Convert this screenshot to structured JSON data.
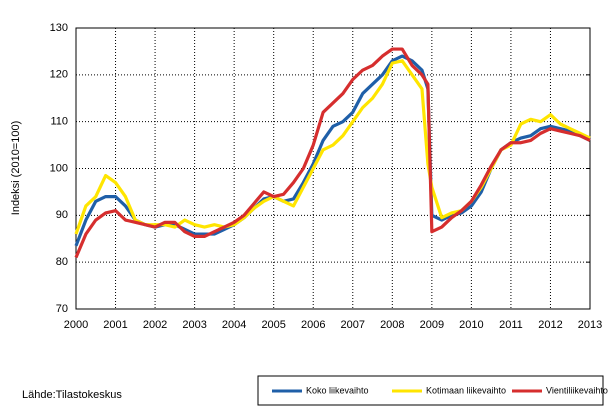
{
  "chart_data": {
    "type": "line",
    "y_label": "Indeksi (2010=100)",
    "source": "Lähde:Tilastokeskus",
    "x": [
      2000,
      2000.25,
      2000.5,
      2000.75,
      2001,
      2001.25,
      2001.5,
      2001.75,
      2002,
      2002.25,
      2002.5,
      2002.75,
      2003,
      2003.25,
      2003.5,
      2003.75,
      2004,
      2004.25,
      2004.5,
      2004.75,
      2005,
      2005.25,
      2005.5,
      2005.75,
      2006,
      2006.25,
      2006.5,
      2006.75,
      2007,
      2007.25,
      2007.5,
      2007.75,
      2008,
      2008.25,
      2008.5,
      2008.75,
      2008.9,
      2009,
      2009.25,
      2009.5,
      2009.75,
      2010,
      2010.25,
      2010.5,
      2010.75,
      2011,
      2011.25,
      2011.5,
      2011.75,
      2012,
      2012.25,
      2012.5,
      2012.75,
      2013
    ],
    "series": [
      {
        "name": "Koko liikevaihto",
        "color": "#1f5fa8",
        "values": [
          83.5,
          89,
          93,
          94,
          94,
          92,
          89,
          88,
          87.5,
          88,
          88,
          87,
          86,
          86,
          86,
          87,
          88,
          89.5,
          91.5,
          93.5,
          94,
          93,
          93.5,
          97,
          101,
          106,
          109,
          110,
          112,
          116,
          118,
          120,
          123,
          124,
          123,
          121,
          117,
          90,
          89,
          90,
          90.5,
          92,
          95,
          100,
          104,
          105.5,
          106.5,
          107,
          108.5,
          109,
          108.5,
          108,
          107,
          106
        ]
      },
      {
        "name": "Kotimaan liikevaihto",
        "color": "#ffe500",
        "values": [
          86,
          92,
          94,
          98.5,
          97,
          94,
          89,
          88,
          88,
          88,
          87.5,
          89,
          88,
          87.5,
          88,
          87.5,
          88,
          89.5,
          91.5,
          93,
          94,
          93,
          92,
          96,
          100,
          104,
          105,
          107,
          110,
          113,
          115,
          118,
          122.5,
          123,
          120,
          117,
          101,
          96,
          89.5,
          90.5,
          91,
          93,
          96,
          100,
          104,
          105,
          109.5,
          110.5,
          110,
          111.5,
          109.5,
          108.5,
          107.5,
          106.5
        ]
      },
      {
        "name": "Vientiliikevaihto",
        "color": "#d62e2e",
        "values": [
          81,
          86,
          89,
          90.5,
          91,
          89,
          88.5,
          88,
          87.5,
          88.5,
          88.5,
          86.5,
          85.5,
          85.5,
          86.5,
          87.5,
          88.5,
          90,
          92.5,
          95,
          94,
          94.5,
          97,
          100,
          105,
          112,
          114,
          116,
          119,
          121,
          122,
          124,
          125.5,
          125.5,
          122,
          120,
          118,
          86.5,
          87.5,
          89.5,
          91,
          93,
          96.5,
          100.5,
          104,
          105.5,
          105.5,
          106,
          107.5,
          108.5,
          108,
          107.5,
          107,
          106
        ]
      }
    ],
    "xlim": [
      2000,
      2013
    ],
    "xticks": [
      2000,
      2001,
      2002,
      2003,
      2004,
      2005,
      2006,
      2007,
      2008,
      2009,
      2010,
      2011,
      2012,
      2013
    ],
    "ylim": [
      70,
      130
    ],
    "yticks": [
      70,
      80,
      90,
      100,
      110,
      120,
      130
    ],
    "grid": true
  }
}
